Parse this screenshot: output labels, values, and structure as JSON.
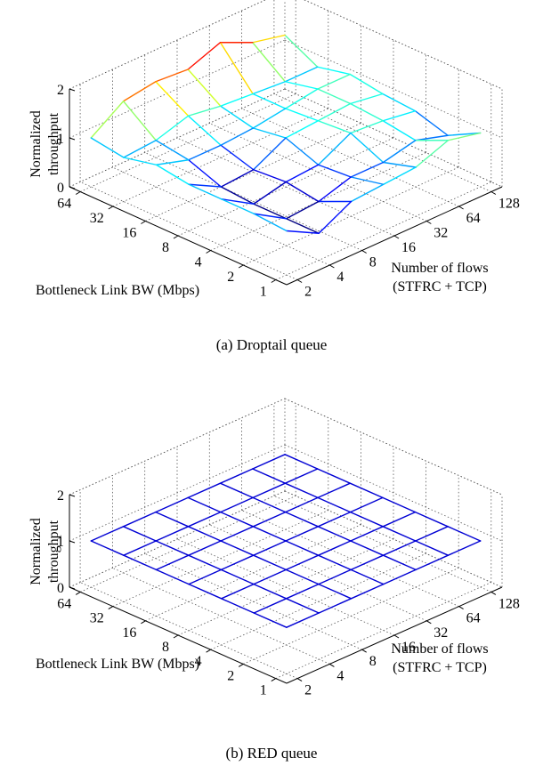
{
  "chart_data": [
    {
      "type": "surface",
      "caption": "(a)  Droptail queue",
      "xlabel": "Bottleneck Link BW (Mbps)",
      "ylabel_lines": [
        "Number of flows",
        "(STFRC + TCP)"
      ],
      "zlabel_lines": [
        "Normalized",
        "throughput"
      ],
      "x_ticks": [
        "1",
        "2",
        "4",
        "8",
        "16",
        "32",
        "64"
      ],
      "y_ticks": [
        "2",
        "4",
        "8",
        "16",
        "32",
        "64",
        "128"
      ],
      "z_ticks": [
        "0",
        "1",
        "2"
      ],
      "zlim": [
        0,
        2
      ],
      "colormap": "jet",
      "z": [
        [
          0.9,
          0.55,
          0.9,
          0.95,
          1.0,
          1.25,
          1.1
        ],
        [
          0.95,
          0.55,
          0.6,
          0.8,
          0.8,
          0.95,
          0.75
        ],
        [
          0.95,
          0.55,
          0.7,
          0.75,
          1.1,
          1.05,
          0.95
        ],
        [
          0.95,
          0.6,
          0.65,
          1.0,
          1.05,
          1.1,
          1.0
        ],
        [
          1.05,
          0.85,
          0.85,
          0.9,
          1.0,
          1.1,
          1.1
        ],
        [
          0.9,
          0.95,
          1.15,
          1.05,
          1.0,
          0.95,
          0.95
        ],
        [
          1.0,
          1.45,
          1.55,
          1.5,
          1.75,
          1.45,
          1.3
        ]
      ]
    },
    {
      "type": "surface",
      "caption": "(b)  RED queue",
      "xlabel": "Bottleneck Link BW (Mbps)",
      "ylabel_lines": [
        "Number of flows",
        "(STFRC + TCP)"
      ],
      "zlabel_lines": [
        "Normalized",
        "throughput"
      ],
      "x_ticks": [
        "1",
        "2",
        "4",
        "8",
        "16",
        "32",
        "64"
      ],
      "y_ticks": [
        "2",
        "4",
        "8",
        "16",
        "32",
        "64",
        "128"
      ],
      "z_ticks": [
        "0",
        "1",
        "2"
      ],
      "zlim": [
        0,
        2
      ],
      "colormap": "jet",
      "z": [
        [
          1.0,
          1.0,
          1.0,
          1.0,
          1.0,
          1.0,
          1.0
        ],
        [
          1.0,
          1.0,
          1.0,
          1.0,
          1.0,
          1.0,
          1.0
        ],
        [
          1.0,
          1.0,
          1.0,
          1.0,
          1.0,
          1.0,
          1.0
        ],
        [
          1.0,
          1.0,
          1.0,
          1.0,
          1.0,
          1.0,
          1.0
        ],
        [
          1.0,
          1.0,
          1.0,
          1.0,
          1.0,
          1.0,
          1.0
        ],
        [
          1.0,
          1.0,
          1.0,
          1.0,
          1.0,
          1.0,
          1.0
        ],
        [
          1.0,
          1.0,
          1.0,
          1.0,
          1.0,
          1.0,
          1.0
        ]
      ]
    }
  ]
}
